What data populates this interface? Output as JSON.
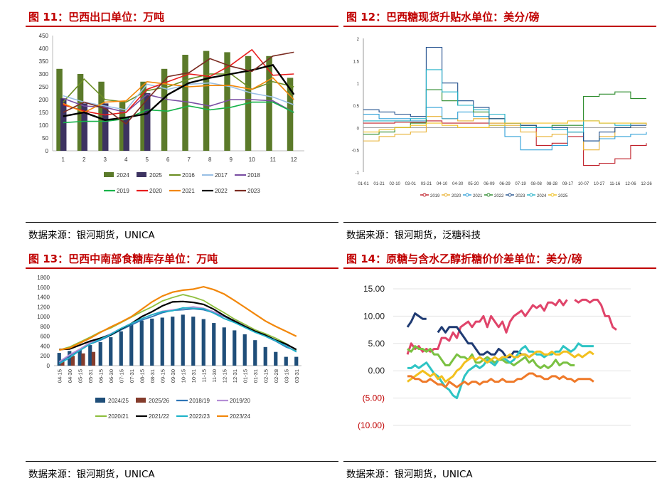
{
  "panels": [
    {
      "title": "图 11：巴西出口单位：万吨",
      "source": "数据来源：银河期货，UNICA"
    },
    {
      "title": "图 12：巴西糖现货升贴水单位：美分/磅",
      "source": "数据来源：银河期货，泛糖科技"
    },
    {
      "title": "图 13：巴西中南部食糖库存单位：万吨",
      "source": "数据来源：银河期货，UNICA"
    },
    {
      "title": "图 14：原糖与含水乙醇折糖价价差单位：美分/磅",
      "source": "数据来源：银河期货，UNICA"
    }
  ],
  "chart_data": [
    {
      "type": "bar",
      "categories": [
        "1",
        "2",
        "3",
        "4",
        "5",
        "6",
        "7",
        "8",
        "9",
        "10",
        "11",
        "12"
      ],
      "ylim": [
        0,
        450
      ],
      "yticks": [
        "0",
        "50",
        "100",
        "150",
        "200",
        "250",
        "300",
        "350",
        "400",
        "450"
      ],
      "bar_series": [
        {
          "name": "2024",
          "color": "#5b7a2a",
          "values": [
            320,
            300,
            270,
            190,
            270,
            320,
            375,
            390,
            385,
            370,
            370,
            285
          ]
        },
        {
          "name": "2025",
          "color": "#3d3361",
          "values": [
            205,
            185,
            185,
            130,
            225,
            null,
            null,
            null,
            null,
            null,
            null,
            null
          ]
        }
      ],
      "line_series": [
        {
          "name": "2016",
          "color": "#6b8e23",
          "values": [
            190,
            280,
            200,
            190,
            235,
            250,
            280,
            300,
            300,
            240,
            270,
            250
          ]
        },
        {
          "name": "2017",
          "color": "#9ac0e6",
          "values": [
            215,
            190,
            175,
            160,
            260,
            240,
            260,
            265,
            250,
            225,
            210,
            180
          ]
        },
        {
          "name": "2018",
          "color": "#7a4fa3",
          "values": [
            205,
            175,
            170,
            150,
            220,
            200,
            190,
            175,
            200,
            200,
            195,
            150
          ]
        },
        {
          "name": "2019",
          "color": "#17b34a",
          "values": [
            110,
            115,
            115,
            125,
            160,
            155,
            175,
            160,
            170,
            190,
            190,
            150
          ]
        },
        {
          "name": "2020",
          "color": "#e81c1c",
          "values": [
            180,
            155,
            140,
            150,
            240,
            270,
            300,
            290,
            335,
            395,
            295,
            300
          ]
        },
        {
          "name": "2021",
          "color": "#f2870a",
          "values": [
            185,
            150,
            190,
            195,
            270,
            260,
            250,
            255,
            255,
            240,
            285,
            200
          ]
        },
        {
          "name": "2022",
          "color": "#000000",
          "values": [
            135,
            150,
            120,
            130,
            145,
            220,
            265,
            285,
            300,
            315,
            335,
            220
          ]
        },
        {
          "name": "2023",
          "color": "#7b2c22",
          "values": [
            150,
            190,
            165,
            105,
            200,
            290,
            305,
            360,
            330,
            310,
            370,
            385
          ]
        }
      ]
    },
    {
      "type": "line",
      "categories": [
        "01-01",
        "01-21",
        "02-10",
        "03-01",
        "03-21",
        "04-10",
        "04-30",
        "05-20",
        "06-09",
        "06-29",
        "07-19",
        "08-08",
        "08-28",
        "09-17",
        "10-07",
        "10-27",
        "11-16",
        "12-06",
        "12-26"
      ],
      "ylim": [
        -1,
        2
      ],
      "yticks": [
        "-1",
        "-0.5",
        "0",
        "0.5",
        "1",
        "1.5",
        "2"
      ],
      "legend": [
        "2019",
        "2020",
        "2021",
        "2022",
        "2023",
        "2024",
        "2025"
      ],
      "series": [
        {
          "name": "2019",
          "color": "#c0202a",
          "values": [
            0.1,
            0.1,
            0.12,
            0.12,
            0.15,
            0.1,
            0.1,
            0.1,
            0.1,
            0.1,
            0.05,
            -0.4,
            -0.35,
            -0.2,
            -0.85,
            -0.8,
            -0.7,
            -0.4,
            -0.35
          ]
        },
        {
          "name": "2020",
          "color": "#e8b030",
          "values": [
            -0.3,
            -0.2,
            -0.15,
            -0.1,
            0.25,
            0.2,
            0.15,
            0.2,
            0.1,
            0.05,
            -0.1,
            -0.2,
            -0.15,
            -0.1,
            -0.5,
            -0.2,
            0.0,
            0.1,
            0.05
          ]
        },
        {
          "name": "2021",
          "color": "#30a0d8",
          "values": [
            0.3,
            0.2,
            0.2,
            0.15,
            0.45,
            0.2,
            0.35,
            0.25,
            0.05,
            -0.2,
            -0.5,
            -0.5,
            -0.4,
            -0.1,
            -0.3,
            -0.25,
            -0.2,
            -0.15,
            -0.1
          ]
        },
        {
          "name": "2022",
          "color": "#2a8a2a",
          "values": [
            -0.15,
            -0.1,
            0.0,
            0.1,
            0.85,
            0.6,
            0.5,
            0.35,
            0.2,
            0.1,
            0.05,
            0.0,
            0.05,
            0.05,
            0.7,
            0.75,
            0.8,
            0.65,
            0.65
          ]
        },
        {
          "name": "2023",
          "color": "#1f4e8c",
          "values": [
            0.4,
            0.35,
            0.3,
            0.25,
            1.8,
            1.0,
            0.6,
            0.45,
            0.2,
            0.1,
            0.05,
            0.0,
            0.0,
            -0.1,
            -0.3,
            -0.1,
            0.0,
            0.05,
            0.05
          ]
        },
        {
          "name": "2024",
          "color": "#20b0c8",
          "values": [
            0.15,
            0.15,
            0.15,
            0.2,
            1.3,
            0.8,
            0.5,
            0.4,
            0.3,
            0.1,
            0.0,
            0.0,
            -0.05,
            -0.1,
            0.15,
            0.1,
            0.05,
            0.1,
            0.1
          ]
        },
        {
          "name": "2025",
          "color": "#f0c020",
          "values": [
            -0.1,
            -0.05,
            0.0,
            0.05,
            0.1,
            0.05,
            0.0,
            0.0,
            0.05,
            0.1,
            0.1,
            0.1,
            0.1,
            0.15,
            0.15,
            0.1,
            0.1,
            0.1,
            0.1
          ]
        }
      ]
    },
    {
      "type": "bar",
      "categories": [
        "04-15",
        "04-30",
        "05-15",
        "05-31",
        "06-15",
        "06-30",
        "07-15",
        "07-31",
        "08-15",
        "08-31",
        "09-15",
        "09-30",
        "10-15",
        "10-31",
        "11-15",
        "11-30",
        "12-15",
        "12-31",
        "01-15",
        "01-31",
        "02-15",
        "02-28",
        "03-15",
        "03-31"
      ],
      "ylim": [
        0,
        1800
      ],
      "yticks": [
        "0",
        "200",
        "400",
        "600",
        "800",
        "1000",
        "1200",
        "1400",
        "1600",
        "1800"
      ],
      "bar_series": [
        {
          "name": "2024/25",
          "color": "#1f4e79",
          "values": [
            260,
            300,
            330,
            420,
            480,
            580,
            700,
            850,
            920,
            960,
            980,
            1000,
            1040,
            1000,
            950,
            870,
            780,
            720,
            640,
            520,
            380,
            280,
            180,
            180
          ]
        },
        {
          "name": "2025/26",
          "color": "#843c2c",
          "values": [
            120,
            200,
            250,
            280,
            null,
            null,
            null,
            null,
            null,
            null,
            null,
            null,
            null,
            null,
            null,
            null,
            null,
            null,
            null,
            null,
            null,
            null,
            null,
            null
          ]
        }
      ],
      "line_series": [
        {
          "name": "2018/19",
          "color": "#2e75b6",
          "values": [
            60,
            200,
            330,
            440,
            520,
            620,
            730,
            830,
            930,
            1000,
            1080,
            1130,
            1140,
            1160,
            1140,
            1080,
            1000,
            900,
            800,
            700,
            600,
            500,
            380,
            300
          ]
        },
        {
          "name": "2019/20",
          "color": "#b48ed6",
          "values": [
            80,
            220,
            340,
            470,
            560,
            650,
            760,
            860,
            960,
            1040,
            1110,
            1140,
            1170,
            1200,
            1170,
            1100,
            1010,
            920,
            820,
            720,
            620,
            520,
            420,
            330
          ]
        },
        {
          "name": "2020/21",
          "color": "#8fbf3f",
          "values": [
            320,
            380,
            480,
            580,
            690,
            770,
            880,
            990,
            1100,
            1200,
            1320,
            1390,
            1450,
            1400,
            1330,
            1200,
            1080,
            950,
            840,
            730,
            650,
            560,
            450,
            320
          ]
        },
        {
          "name": "2021/22",
          "color": "#000000",
          "values": [
            330,
            340,
            420,
            500,
            560,
            630,
            750,
            860,
            1000,
            1100,
            1220,
            1300,
            1310,
            1290,
            1250,
            1150,
            1020,
            910,
            800,
            700,
            620,
            520,
            440,
            330
          ]
        },
        {
          "name": "2022/23",
          "color": "#1fb3c9",
          "values": [
            40,
            160,
            310,
            440,
            540,
            640,
            760,
            860,
            960,
            1040,
            1100,
            1120,
            1180,
            1170,
            1160,
            1070,
            960,
            880,
            780,
            680,
            600,
            510,
            400,
            280
          ]
        },
        {
          "name": "2023/24",
          "color": "#f2870a",
          "values": [
            320,
            360,
            460,
            560,
            680,
            790,
            890,
            1000,
            1150,
            1300,
            1420,
            1500,
            1540,
            1560,
            1610,
            1550,
            1460,
            1330,
            1190,
            1050,
            910,
            800,
            700,
            600
          ]
        }
      ],
      "legend": [
        "2024/25",
        "2025/26",
        "2018/19",
        "2019/20",
        "2020/21",
        "2021/22",
        "2022/23",
        "2023/24"
      ]
    },
    {
      "type": "line",
      "ylim": [
        -10,
        15
      ],
      "yticks": [
        "15.00",
        "10.00",
        "5.00",
        "0.00",
        "(5.00)",
        "(10.00)"
      ],
      "series": [
        {
          "name": "",
          "color": "#e0446a",
          "values": [
            3,
            5,
            4,
            4.5,
            3.5,
            4,
            3.5,
            4,
            4,
            6,
            6,
            5.5,
            7,
            6,
            8,
            8.5,
            9,
            8,
            9,
            9,
            10,
            8,
            10,
            9,
            8,
            9,
            7,
            9,
            10,
            10.5,
            11,
            10,
            11,
            12,
            11.5,
            12,
            11,
            12.5,
            12.5,
            12,
            13,
            12,
            13,
            null,
            13,
            12.5,
            13,
            13,
            12.5,
            13,
            13,
            12,
            10,
            10,
            8,
            7.5
          ]
        },
        {
          "name": "",
          "color": "#1f3b73",
          "values": [
            8,
            9,
            10.5,
            10,
            9.5,
            9.5,
            null,
            null,
            7,
            8,
            7,
            8,
            8,
            8,
            7,
            6,
            5,
            5,
            4,
            3,
            3,
            3.5,
            3,
            3,
            4,
            3.5,
            2.5,
            2.5,
            3.5,
            3.5,
            3,
            3,
            2.5,
            3,
            3.5
          ]
        },
        {
          "name": "",
          "color": "#7ac142",
          "values": [
            4,
            3.5,
            4.5,
            4,
            4,
            3.5,
            4,
            3,
            3,
            2,
            1,
            1,
            2,
            3,
            2.5,
            2.5,
            2,
            3,
            1.5,
            1.5,
            2,
            2.5,
            2,
            1.5,
            2,
            2,
            1.5,
            1.5,
            1,
            1.5,
            2,
            2.5,
            1.5,
            2,
            1,
            0.5,
            1,
            0.5,
            1,
            2,
            1,
            1.5,
            1.5,
            1,
            1
          ]
        },
        {
          "name": "",
          "color": "#2ec4c4",
          "values": [
            0.5,
            0.5,
            1,
            0.5,
            1,
            1.5,
            0.5,
            -0.5,
            -1,
            -2,
            -3,
            -3.5,
            -4.5,
            -5,
            -3,
            -1,
            0,
            0.5,
            1,
            0.5,
            1,
            2,
            1.5,
            1,
            2,
            2.5,
            2,
            1.5,
            2,
            3,
            4,
            4.5,
            3.5,
            3.5,
            3,
            3,
            2.5,
            3,
            3,
            3.5,
            3.5,
            4.5,
            4,
            3.5,
            4,
            5,
            4.5,
            4.5,
            4.5,
            4.5
          ]
        },
        {
          "name": "",
          "color": "#f2c01e",
          "values": [
            -2,
            -1.5,
            -1,
            -0.5,
            0,
            -0.5,
            -1,
            -0.5,
            -1.5,
            -1,
            -2,
            -1.5,
            -1,
            0,
            0.5,
            1.5,
            2,
            2.5,
            2,
            2.5,
            2,
            1.5,
            2,
            2.5,
            2,
            2.5,
            2.5,
            3,
            2.5,
            2.5,
            3,
            3,
            2.5,
            3,
            3.5,
            3.5,
            3,
            3,
            3.5,
            3,
            3,
            3.5,
            3.5,
            3,
            2.5,
            3,
            2.5,
            3,
            3.5,
            3
          ]
        },
        {
          "name": "",
          "color": "#ef7a2a",
          "values": [
            -1,
            -1,
            -1.5,
            -1.5,
            -2,
            -2,
            -1.5,
            -2,
            -2.5,
            -2.5,
            -3,
            -2,
            -2.5,
            -3,
            -2.5,
            -2,
            -2.5,
            -2,
            -2,
            -2.5,
            -2,
            -2,
            -1.5,
            -2,
            -2,
            -1.5,
            -2,
            -2,
            -2,
            -1.5,
            -1.5,
            -1,
            -0.5,
            -0.5,
            -1,
            -1,
            -1.5,
            -1.5,
            -1,
            -1,
            -1.5,
            -1,
            -1.5,
            -1.5,
            -2,
            -1.5,
            -1.5,
            -1.5,
            -1.5,
            -2
          ]
        }
      ]
    }
  ]
}
